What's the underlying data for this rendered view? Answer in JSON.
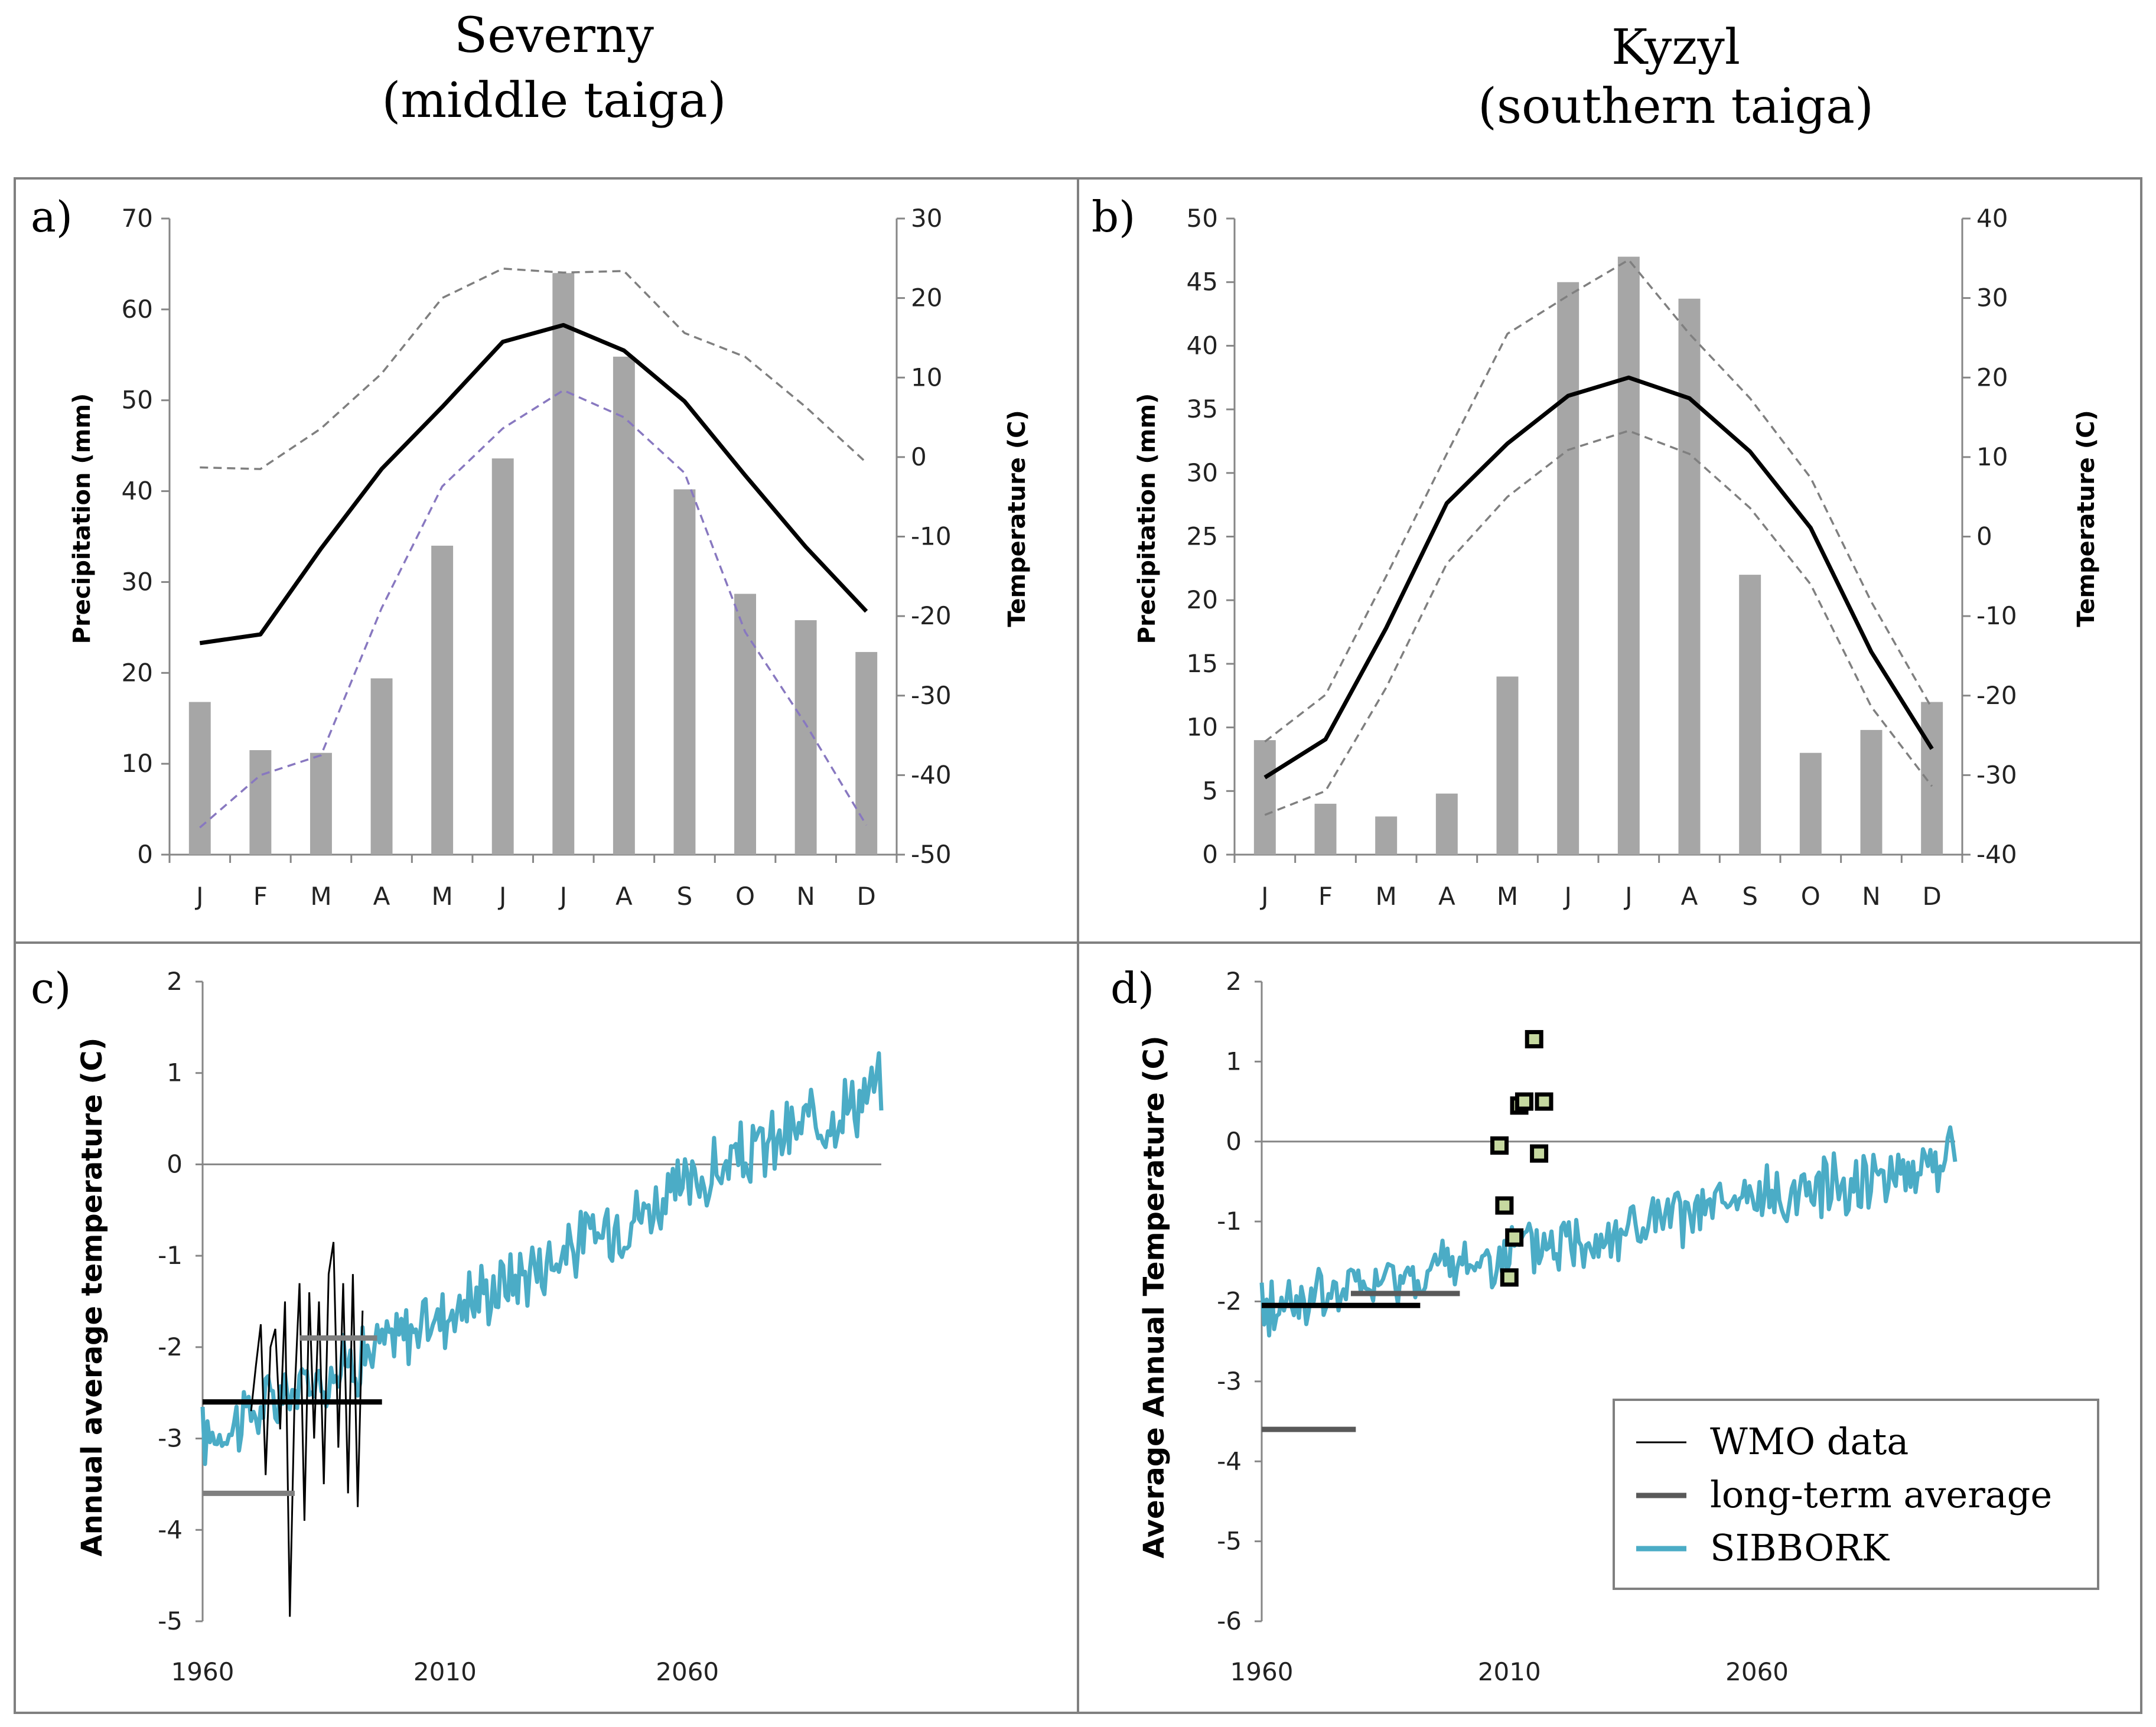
{
  "titles": {
    "left_name": "Severny",
    "left_sub": "(middle taiga)",
    "right_name": "Kyzyl",
    "right_sub": "(southern taiga)"
  },
  "colors": {
    "bar": "#a6a6a6",
    "mean_line": "#000000",
    "range_dash_grey": "#7f7f7f",
    "range_dash_purple": "#8878c0",
    "sibbork": "#4bacc6",
    "wmo": "#000000",
    "avg_dark": "#000000",
    "avg_grey": "#7f7f7f",
    "avg_mid": "#595959",
    "marker_fill": "#c6d9a0",
    "marker_edge": "#000000",
    "frame": "#808080"
  },
  "legend": {
    "items": [
      {
        "label": "WMO data",
        "color": "#000000",
        "width": 3
      },
      {
        "label": "long-term average",
        "color": "#595959",
        "width": 9
      },
      {
        "label": "SIBBORK",
        "color": "#4bacc6",
        "width": 9
      }
    ]
  },
  "chart_data": [
    {
      "panel": "a)",
      "type": "bar",
      "categories": [
        "J",
        "F",
        "M",
        "A",
        "M",
        "J",
        "J",
        "A",
        "S",
        "O",
        "N",
        "D"
      ],
      "ylabel": "Precipitation (mm)",
      "ylim": [
        0,
        70
      ],
      "yticks": [
        0,
        10,
        20,
        30,
        40,
        50,
        60,
        70
      ],
      "y2label": "Temperature (C)",
      "y2lim": [
        -50,
        30
      ],
      "y2ticks": [
        -50,
        -40,
        -30,
        -20,
        -10,
        0,
        10,
        20,
        30
      ],
      "precipitation": [
        16.8,
        11.5,
        11.2,
        19.4,
        34,
        43.6,
        64,
        54.8,
        40.2,
        28.7,
        25.8,
        22.3
      ],
      "temp_mean": [
        -23.4,
        -22.3,
        -11.5,
        -1.5,
        6.3,
        14.5,
        16.6,
        13.4,
        7,
        -2.3,
        -11.3,
        -19.4
      ],
      "temp_max": [
        -1.3,
        -1.5,
        3.6,
        10.5,
        20,
        23.7,
        23.2,
        23.4,
        15.6,
        12.6,
        6.3,
        -0.7
      ],
      "temp_min": [
        -46.6,
        -40,
        -37.5,
        -19,
        -3.7,
        3.6,
        8.4,
        5,
        -2,
        -22,
        -33.6,
        -46.3
      ],
      "temp_max_color": "#7f7f7f",
      "temp_min_color": "#8878c0"
    },
    {
      "panel": "b)",
      "type": "bar",
      "categories": [
        "J",
        "F",
        "M",
        "A",
        "M",
        "J",
        "J",
        "A",
        "S",
        "O",
        "N",
        "D"
      ],
      "ylabel": "Precipitation (mm)",
      "ylim": [
        0,
        50
      ],
      "yticks": [
        0,
        5,
        10,
        15,
        20,
        25,
        30,
        35,
        40,
        45,
        50
      ],
      "y2label": "Temperature (C)",
      "y2lim": [
        -40,
        40
      ],
      "y2ticks": [
        -40,
        -30,
        -20,
        -10,
        0,
        10,
        20,
        30,
        40
      ],
      "precipitation": [
        9,
        4,
        3,
        4.8,
        14,
        45,
        47,
        43.7,
        22,
        8,
        9.8,
        12
      ],
      "temp_mean": [
        -30.3,
        -25.5,
        -11.5,
        4.2,
        11.7,
        17.7,
        20,
        17.4,
        10.7,
        1.1,
        -14.5,
        -26.7
      ],
      "temp_max": [
        -25.8,
        -19.9,
        -5,
        10.4,
        25.5,
        30.3,
        34.8,
        25.5,
        17.4,
        7.4,
        -8.2,
        -21.6
      ],
      "temp_min": [
        -35,
        -32,
        -19,
        -3.4,
        5,
        10.9,
        13.3,
        10.4,
        3.6,
        -6,
        -21.4,
        -31.4
      ],
      "temp_max_color": "#7f7f7f",
      "temp_min_color": "#7f7f7f"
    },
    {
      "panel": "c)",
      "type": "line",
      "ylabel": "Annual average temperature (C)",
      "ylim": [
        -5,
        2
      ],
      "yticks": [
        -5,
        -4,
        -3,
        -2,
        -1,
        0,
        1,
        2
      ],
      "xlim": [
        1960,
        2100
      ],
      "xticks": [
        1960,
        2010,
        2060
      ],
      "sibbork": {
        "start": 1960,
        "end": 2100,
        "start_value": -3.0,
        "end_value": 0.85
      },
      "wmo_x": [
        1970,
        1971,
        1972,
        1973,
        1974,
        1975,
        1976,
        1977,
        1978,
        1979,
        1980,
        1981,
        1982,
        1983,
        1984,
        1985,
        1986,
        1987,
        1988,
        1989,
        1990,
        1991,
        1992,
        1993
      ],
      "wmo_y": [
        -2.7,
        -2.2,
        -1.75,
        -3.4,
        -2.0,
        -1.8,
        -2.9,
        -1.5,
        -4.95,
        -2.5,
        -1.3,
        -3.9,
        -1.4,
        -3.0,
        -1.5,
        -3.5,
        -1.2,
        -0.85,
        -3.1,
        -1.3,
        -3.6,
        -1.2,
        -3.75,
        -1.6
      ],
      "averages": [
        {
          "x": [
            1960,
            1997
          ],
          "y": -2.6,
          "style": "dark"
        },
        {
          "x": [
            1980,
            1996
          ],
          "y": -1.9,
          "style": "grey"
        },
        {
          "x": [
            1960,
            1979
          ],
          "y": -3.6,
          "style": "grey"
        }
      ]
    },
    {
      "panel": "d)",
      "type": "line",
      "ylabel": "Average Annual Temperature (C)",
      "ylim": [
        -6,
        2
      ],
      "yticks": [
        -6,
        -5,
        -4,
        -3,
        -2,
        -1,
        0,
        1,
        2
      ],
      "xlim": [
        1960,
        2100
      ],
      "xticks": [
        1960,
        2010,
        2060
      ],
      "sibbork": {
        "start": 1960,
        "end": 2100,
        "start_value": -2.1,
        "end_value": -0.2
      },
      "markers_x": [
        2008,
        2009,
        2011,
        2012,
        2013,
        2015,
        2016,
        2017,
        2010
      ],
      "markers_y": [
        -0.05,
        -0.8,
        -1.2,
        0.45,
        0.5,
        1.28,
        -0.15,
        0.5,
        -1.7
      ],
      "averages": [
        {
          "x": [
            1960,
            1992
          ],
          "y": -2.05,
          "style": "dark"
        },
        {
          "x": [
            1978,
            2000
          ],
          "y": -1.9,
          "style": "mid"
        },
        {
          "x": [
            1960,
            1979
          ],
          "y": -3.6,
          "style": "mid"
        }
      ]
    }
  ]
}
